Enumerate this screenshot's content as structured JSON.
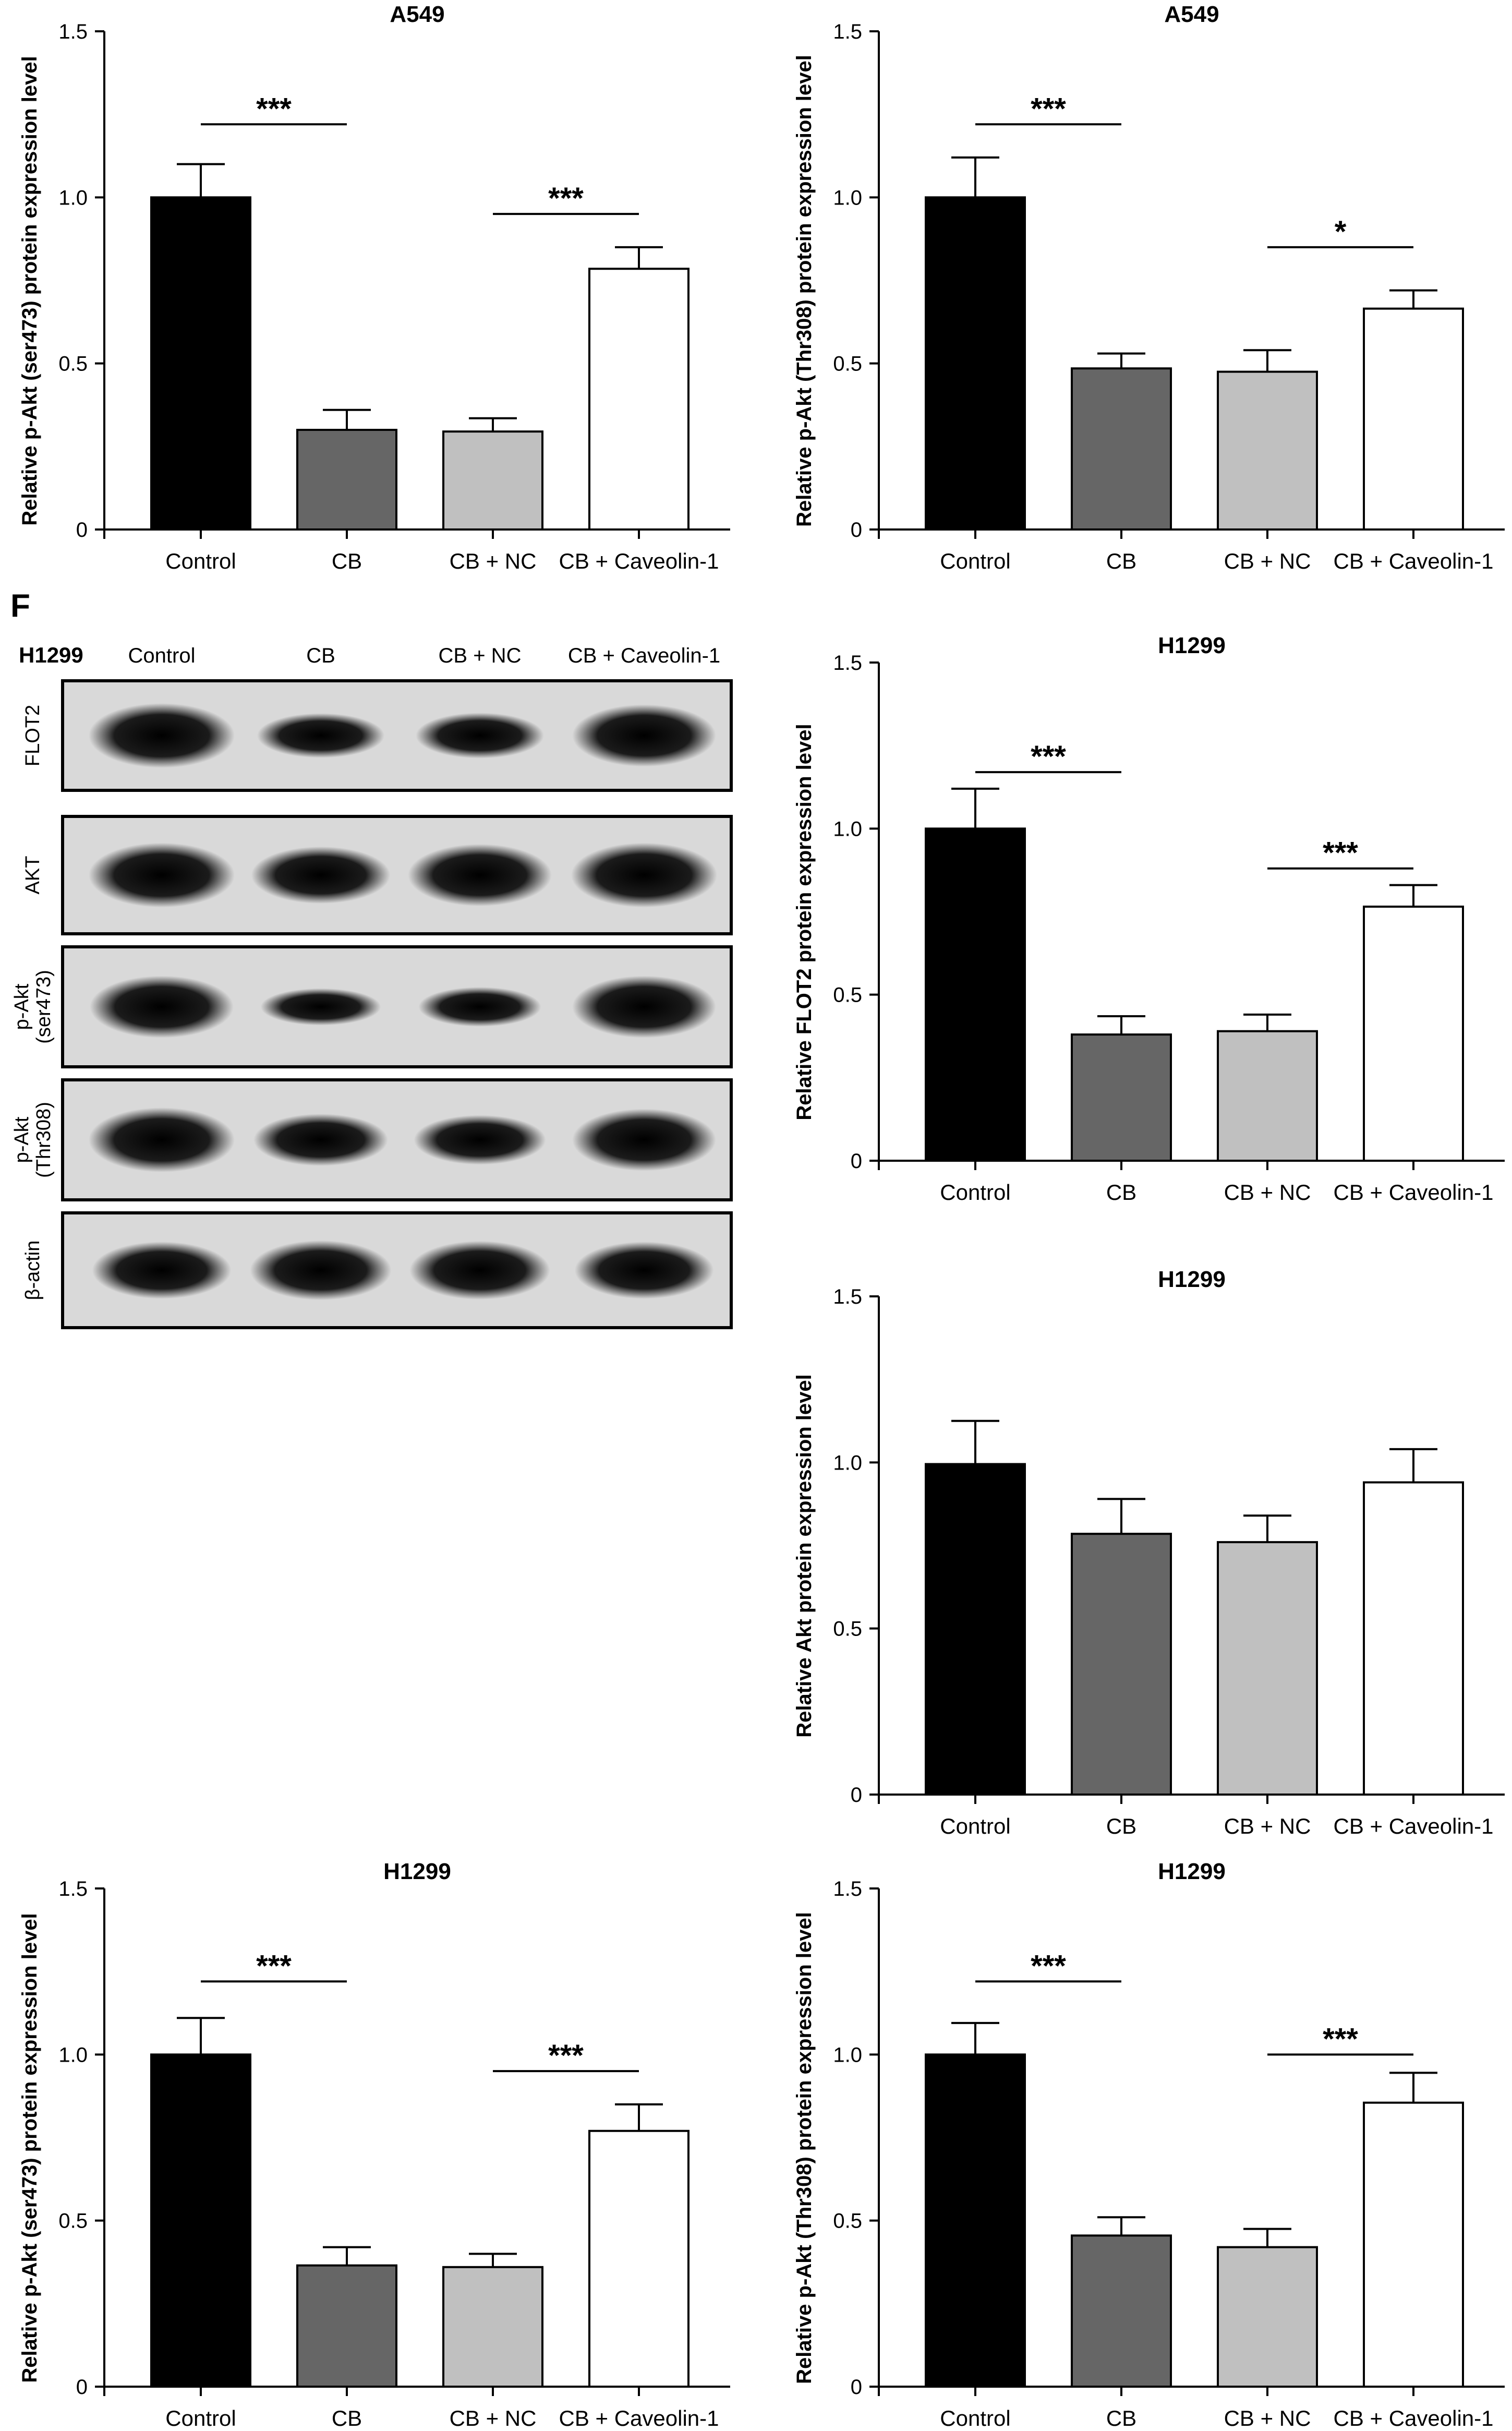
{
  "panel_letter": "F",
  "blot": {
    "cell_line": "H1299",
    "lane_labels": [
      "Control",
      "CB",
      "CB + NC",
      "CB + Caveolin-1"
    ],
    "bands": [
      {
        "label": "FLOT2",
        "intensity": [
          1.0,
          0.6,
          0.62,
          0.95
        ]
      },
      {
        "label": "AKT",
        "intensity": [
          1.0,
          0.85,
          0.95,
          1.0
        ]
      },
      {
        "label": "p-Akt (ser473)",
        "intensity": [
          0.95,
          0.45,
          0.5,
          0.95
        ]
      },
      {
        "label": "p-Akt (Thr308)",
        "intensity": [
          1.0,
          0.75,
          0.7,
          0.95
        ]
      },
      {
        "label": "β-actin",
        "intensity": [
          0.85,
          0.9,
          0.88,
          0.85
        ]
      }
    ]
  },
  "chart_data": [
    {
      "type": "bar",
      "title": "A549",
      "ylabel": "Relative p-Akt (ser473) protein expression level",
      "categories": [
        "Control",
        "CB",
        "CB + NC",
        "CB + Caveolin-1"
      ],
      "values": [
        1.0,
        0.3,
        0.295,
        0.785
      ],
      "errors": [
        0.1,
        0.06,
        0.04,
        0.065
      ],
      "ylim": [
        0,
        1.5
      ],
      "yticks": [
        "0",
        "0.5",
        "1.0",
        "1.5"
      ],
      "significance": [
        {
          "from": 0,
          "to": 1,
          "y": 1.22,
          "label": "***"
        },
        {
          "from": 2,
          "to": 3,
          "y": 0.95,
          "label": "***"
        }
      ]
    },
    {
      "type": "bar",
      "title": "A549",
      "ylabel": "Relative p-Akt (Thr308) protein expression level",
      "categories": [
        "Control",
        "CB",
        "CB + NC",
        "CB + Caveolin-1"
      ],
      "values": [
        1.0,
        0.485,
        0.475,
        0.665
      ],
      "errors": [
        0.12,
        0.045,
        0.065,
        0.055
      ],
      "ylim": [
        0,
        1.5
      ],
      "yticks": [
        "0",
        "0.5",
        "1.0",
        "1.5"
      ],
      "significance": [
        {
          "from": 0,
          "to": 1,
          "y": 1.22,
          "label": "***"
        },
        {
          "from": 2,
          "to": 3,
          "y": 0.85,
          "label": "*"
        }
      ]
    },
    {
      "type": "bar",
      "title": "H1299",
      "ylabel": "Relative FLOT2 protein expression level",
      "categories": [
        "Control",
        "CB",
        "CB + NC",
        "CB + Caveolin-1"
      ],
      "values": [
        1.0,
        0.38,
        0.39,
        0.765
      ],
      "errors": [
        0.12,
        0.055,
        0.05,
        0.065
      ],
      "ylim": [
        0,
        1.5
      ],
      "yticks": [
        "0",
        "0.5",
        "1.0",
        "1.5"
      ],
      "significance": [
        {
          "from": 0,
          "to": 1,
          "y": 1.17,
          "label": "***"
        },
        {
          "from": 2,
          "to": 3,
          "y": 0.88,
          "label": "***"
        }
      ]
    },
    {
      "type": "bar",
      "title": "H1299",
      "ylabel": "Relative Akt protein expression level",
      "categories": [
        "Control",
        "CB",
        "CB + NC",
        "CB + Caveolin-1"
      ],
      "values": [
        0.995,
        0.785,
        0.76,
        0.94
      ],
      "errors": [
        0.13,
        0.105,
        0.08,
        0.1
      ],
      "ylim": [
        0,
        1.5
      ],
      "yticks": [
        "0",
        "0.5",
        "1.0",
        "1.5"
      ],
      "significance": []
    },
    {
      "type": "bar",
      "title": "H1299",
      "ylabel": "Relative p-Akt (ser473) protein expression level",
      "categories": [
        "Control",
        "CB",
        "CB + NC",
        "CB + Caveolin-1"
      ],
      "values": [
        1.0,
        0.365,
        0.36,
        0.77
      ],
      "errors": [
        0.11,
        0.055,
        0.04,
        0.08
      ],
      "ylim": [
        0,
        1.5
      ],
      "yticks": [
        "0",
        "0.5",
        "1.0",
        "1.5"
      ],
      "significance": [
        {
          "from": 0,
          "to": 1,
          "y": 1.22,
          "label": "***"
        },
        {
          "from": 2,
          "to": 3,
          "y": 0.95,
          "label": "***"
        }
      ]
    },
    {
      "type": "bar",
      "title": "H1299",
      "ylabel": "Relative p-Akt (Thr308) protein expression level",
      "categories": [
        "Control",
        "CB",
        "CB + NC",
        "CB + Caveolin-1"
      ],
      "values": [
        1.0,
        0.455,
        0.42,
        0.855
      ],
      "errors": [
        0.095,
        0.055,
        0.055,
        0.09
      ],
      "ylim": [
        0,
        1.5
      ],
      "yticks": [
        "0",
        "0.5",
        "1.0",
        "1.5"
      ],
      "significance": [
        {
          "from": 0,
          "to": 1,
          "y": 1.22,
          "label": "***"
        },
        {
          "from": 2,
          "to": 3,
          "y": 1.0,
          "label": "***"
        }
      ]
    }
  ],
  "style": {
    "bar_colors": [
      "#000000",
      "#666666",
      "#c0c0c0",
      "#ffffff"
    ],
    "axis_color": "#000000"
  }
}
